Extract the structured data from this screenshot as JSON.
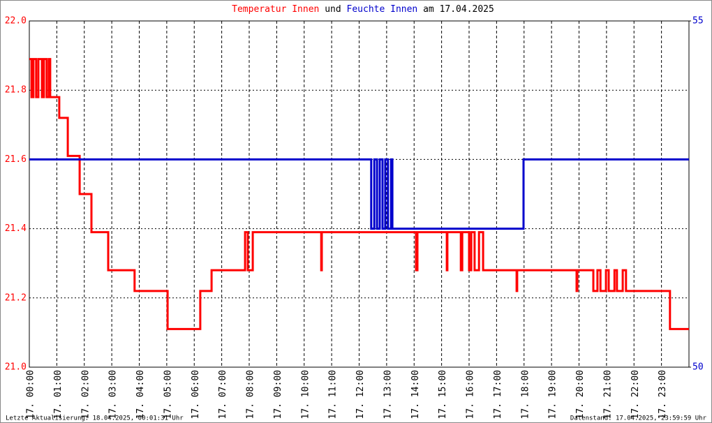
{
  "chart_data": {
    "type": "line",
    "title_connector": "und",
    "title_suffix": "am 17.04.2025",
    "footer_left": "Letzte Aktualisierung: 18.04.2025, 00:01:31 Uhr",
    "footer_right": "Datenstand: 17.04.2025, 23:59:59 Uhr",
    "xlim": [
      0,
      24
    ],
    "xticks": [
      {
        "value": 0,
        "label": "17. 00:00"
      },
      {
        "value": 1,
        "label": "17. 01:00"
      },
      {
        "value": 2,
        "label": "17. 02:00"
      },
      {
        "value": 3,
        "label": "17. 03:00"
      },
      {
        "value": 4,
        "label": "17. 04:00"
      },
      {
        "value": 5,
        "label": "17. 05:00"
      },
      {
        "value": 6,
        "label": "17. 06:00"
      },
      {
        "value": 7,
        "label": "17. 07:00"
      },
      {
        "value": 8,
        "label": "17. 08:00"
      },
      {
        "value": 9,
        "label": "17. 09:00"
      },
      {
        "value": 10,
        "label": "17. 10:00"
      },
      {
        "value": 11,
        "label": "17. 11:00"
      },
      {
        "value": 12,
        "label": "17. 12:00"
      },
      {
        "value": 13,
        "label": "17. 13:00"
      },
      {
        "value": 14,
        "label": "17. 14:00"
      },
      {
        "value": 15,
        "label": "17. 15:00"
      },
      {
        "value": 16,
        "label": "17. 16:00"
      },
      {
        "value": 17,
        "label": "17. 17:00"
      },
      {
        "value": 18,
        "label": "17. 18:00"
      },
      {
        "value": 19,
        "label": "17. 19:00"
      },
      {
        "value": 20,
        "label": "17. 20:00"
      },
      {
        "value": 21,
        "label": "17. 21:00"
      },
      {
        "value": 22,
        "label": "17. 22:00"
      },
      {
        "value": 23,
        "label": "17. 23:00"
      }
    ],
    "ylim": [
      21.0,
      22.0
    ],
    "yticks": [
      {
        "value": 21,
        "label": "21.0"
      },
      21.2,
      21.4,
      21.6,
      21.8,
      {
        "value": 22,
        "label": "22.0"
      }
    ],
    "y2lim": [
      50,
      55
    ],
    "y2ticks": [
      50,
      55
    ],
    "grid": true,
    "series": [
      {
        "name": "Temperatur Innen",
        "color": "#ff0000",
        "x": [
          0,
          0.08,
          0.08,
          0.15,
          0.15,
          0.25,
          0.25,
          0.33,
          0.33,
          0.46,
          0.46,
          0.53,
          0.53,
          0.63,
          0.63,
          0.71,
          0.71,
          0.76,
          0.76,
          1.09,
          1.09,
          1.4,
          1.4,
          1.83,
          1.83,
          2.26,
          2.26,
          2.87,
          2.87,
          3.83,
          3.83,
          5.03,
          5.03,
          6.22,
          6.22,
          6.63,
          6.63,
          7.85,
          7.85,
          7.95,
          7.95,
          8.13,
          8.13,
          8.33,
          10.62,
          10.62,
          10.64,
          10.64,
          14.07,
          14.07,
          14.12,
          14.12,
          15.19,
          15.19,
          15.21,
          15.21,
          15.7,
          15.7,
          15.75,
          15.75,
          16.0,
          16.0,
          16.08,
          16.08,
          16.2,
          16.2,
          16.36,
          16.36,
          16.51,
          16.51,
          17.73,
          17.73,
          17.75,
          17.75,
          19.91,
          19.91,
          19.94,
          19.94,
          20.52,
          20.52,
          20.67,
          20.67,
          20.78,
          20.78,
          20.98,
          20.98,
          21.08,
          21.08,
          21.29,
          21.29,
          21.38,
          21.38,
          21.59,
          21.59,
          21.71,
          21.71,
          23.31,
          23.31,
          24
        ],
        "values": [
          21.89,
          21.89,
          21.78,
          21.78,
          21.89,
          21.89,
          21.78,
          21.78,
          21.89,
          21.89,
          21.78,
          21.78,
          21.89,
          21.89,
          21.78,
          21.78,
          21.89,
          21.89,
          21.78,
          21.78,
          21.72,
          21.72,
          21.61,
          21.61,
          21.5,
          21.5,
          21.39,
          21.39,
          21.28,
          21.28,
          21.22,
          21.22,
          21.11,
          21.11,
          21.22,
          21.22,
          21.28,
          21.28,
          21.39,
          21.39,
          21.28,
          21.28,
          21.39,
          21.39,
          21.39,
          21.28,
          21.28,
          21.39,
          21.39,
          21.28,
          21.28,
          21.39,
          21.39,
          21.28,
          21.28,
          21.39,
          21.39,
          21.28,
          21.28,
          21.39,
          21.39,
          21.28,
          21.28,
          21.39,
          21.39,
          21.28,
          21.28,
          21.39,
          21.39,
          21.28,
          21.28,
          21.22,
          21.22,
          21.28,
          21.28,
          21.22,
          21.22,
          21.28,
          21.28,
          21.22,
          21.22,
          21.28,
          21.28,
          21.22,
          21.22,
          21.28,
          21.28,
          21.22,
          21.22,
          21.28,
          21.28,
          21.22,
          21.22,
          21.28,
          21.28,
          21.22,
          21.22,
          21.11,
          21.11
        ]
      },
      {
        "name": "Feuchte Innen",
        "color": "#0000cc",
        "axis": "y2",
        "x": [
          0,
          12.44,
          12.44,
          12.55,
          12.55,
          12.65,
          12.65,
          12.75,
          12.75,
          12.85,
          12.85,
          12.95,
          12.95,
          13.05,
          13.05,
          13.16,
          13.16,
          13.21,
          13.21,
          17.98,
          17.98,
          24
        ],
        "values": [
          53,
          53,
          52,
          52,
          53,
          53,
          52,
          52,
          53,
          53,
          52,
          52,
          53,
          53,
          52,
          52,
          53,
          53,
          52,
          52,
          53,
          53
        ]
      }
    ]
  }
}
